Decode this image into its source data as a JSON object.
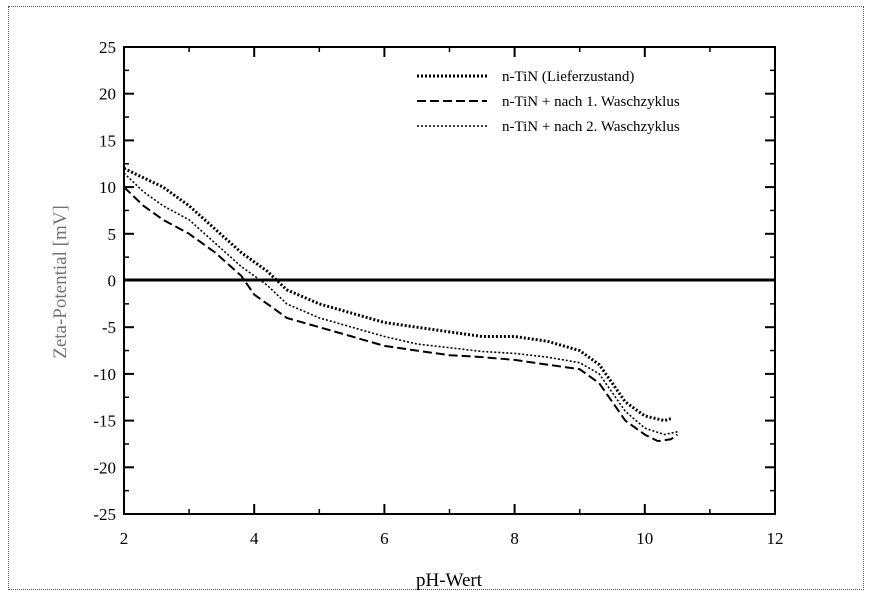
{
  "chart_data": {
    "type": "line",
    "title": "",
    "xlabel": "pH-Wert",
    "ylabel": "Zeta-Potential [mV]",
    "xlim": [
      2,
      12
    ],
    "ylim": [
      -25,
      25
    ],
    "xticks": [
      2,
      4,
      6,
      8,
      10,
      12
    ],
    "yticks": [
      25,
      20,
      15,
      10,
      5,
      0,
      -5,
      -10,
      -15,
      -20,
      -25
    ],
    "grid": false,
    "legend_position": "top-right",
    "zero_line": true,
    "series": [
      {
        "name": "n-TiN (Lieferzustand)",
        "style": "dotted",
        "points": [
          [
            2.0,
            12
          ],
          [
            2.3,
            11
          ],
          [
            2.6,
            10
          ],
          [
            3.0,
            8
          ],
          [
            3.4,
            5.5
          ],
          [
            3.8,
            3
          ],
          [
            4.2,
            1
          ],
          [
            4.5,
            -1
          ],
          [
            5.0,
            -2.5
          ],
          [
            5.5,
            -3.5
          ],
          [
            6.0,
            -4.5
          ],
          [
            6.5,
            -5
          ],
          [
            7.0,
            -5.5
          ],
          [
            7.5,
            -6
          ],
          [
            8.0,
            -6
          ],
          [
            8.5,
            -6.5
          ],
          [
            9.0,
            -7.5
          ],
          [
            9.3,
            -9
          ],
          [
            9.5,
            -11
          ],
          [
            9.7,
            -13
          ],
          [
            10.0,
            -14.5
          ],
          [
            10.3,
            -15
          ],
          [
            10.4,
            -14.8
          ]
        ]
      },
      {
        "name": "n-TiN + nach 1. Waschzyklus",
        "style": "dashed",
        "points": [
          [
            2.0,
            10
          ],
          [
            2.3,
            8
          ],
          [
            2.6,
            6.5
          ],
          [
            3.0,
            5
          ],
          [
            3.4,
            3
          ],
          [
            3.8,
            0.5
          ],
          [
            4.0,
            -1.5
          ],
          [
            4.5,
            -4
          ],
          [
            5.0,
            -5
          ],
          [
            5.5,
            -6
          ],
          [
            6.0,
            -7
          ],
          [
            6.5,
            -7.5
          ],
          [
            7.0,
            -8
          ],
          [
            7.5,
            -8.2
          ],
          [
            8.0,
            -8.5
          ],
          [
            8.5,
            -9
          ],
          [
            9.0,
            -9.5
          ],
          [
            9.3,
            -11
          ],
          [
            9.5,
            -13
          ],
          [
            9.7,
            -15
          ],
          [
            10.0,
            -16.5
          ],
          [
            10.2,
            -17.2
          ],
          [
            10.4,
            -17
          ],
          [
            10.5,
            -16.5
          ]
        ]
      },
      {
        "name": "n-TiN + nach 2. Waschzyklus",
        "style": "dotted",
        "points": [
          [
            2.0,
            11.5
          ],
          [
            2.3,
            9.5
          ],
          [
            2.6,
            8
          ],
          [
            3.0,
            6.5
          ],
          [
            3.4,
            4
          ],
          [
            3.8,
            1.5
          ],
          [
            4.2,
            -0.5
          ],
          [
            4.5,
            -2.5
          ],
          [
            5.0,
            -4
          ],
          [
            5.5,
            -5
          ],
          [
            6.0,
            -6
          ],
          [
            6.5,
            -6.8
          ],
          [
            7.0,
            -7.2
          ],
          [
            7.5,
            -7.6
          ],
          [
            8.0,
            -7.8
          ],
          [
            8.5,
            -8.2
          ],
          [
            9.0,
            -8.8
          ],
          [
            9.3,
            -10
          ],
          [
            9.5,
            -12
          ],
          [
            9.7,
            -14
          ],
          [
            10.0,
            -15.8
          ],
          [
            10.3,
            -16.5
          ],
          [
            10.5,
            -16.2
          ]
        ]
      }
    ]
  }
}
